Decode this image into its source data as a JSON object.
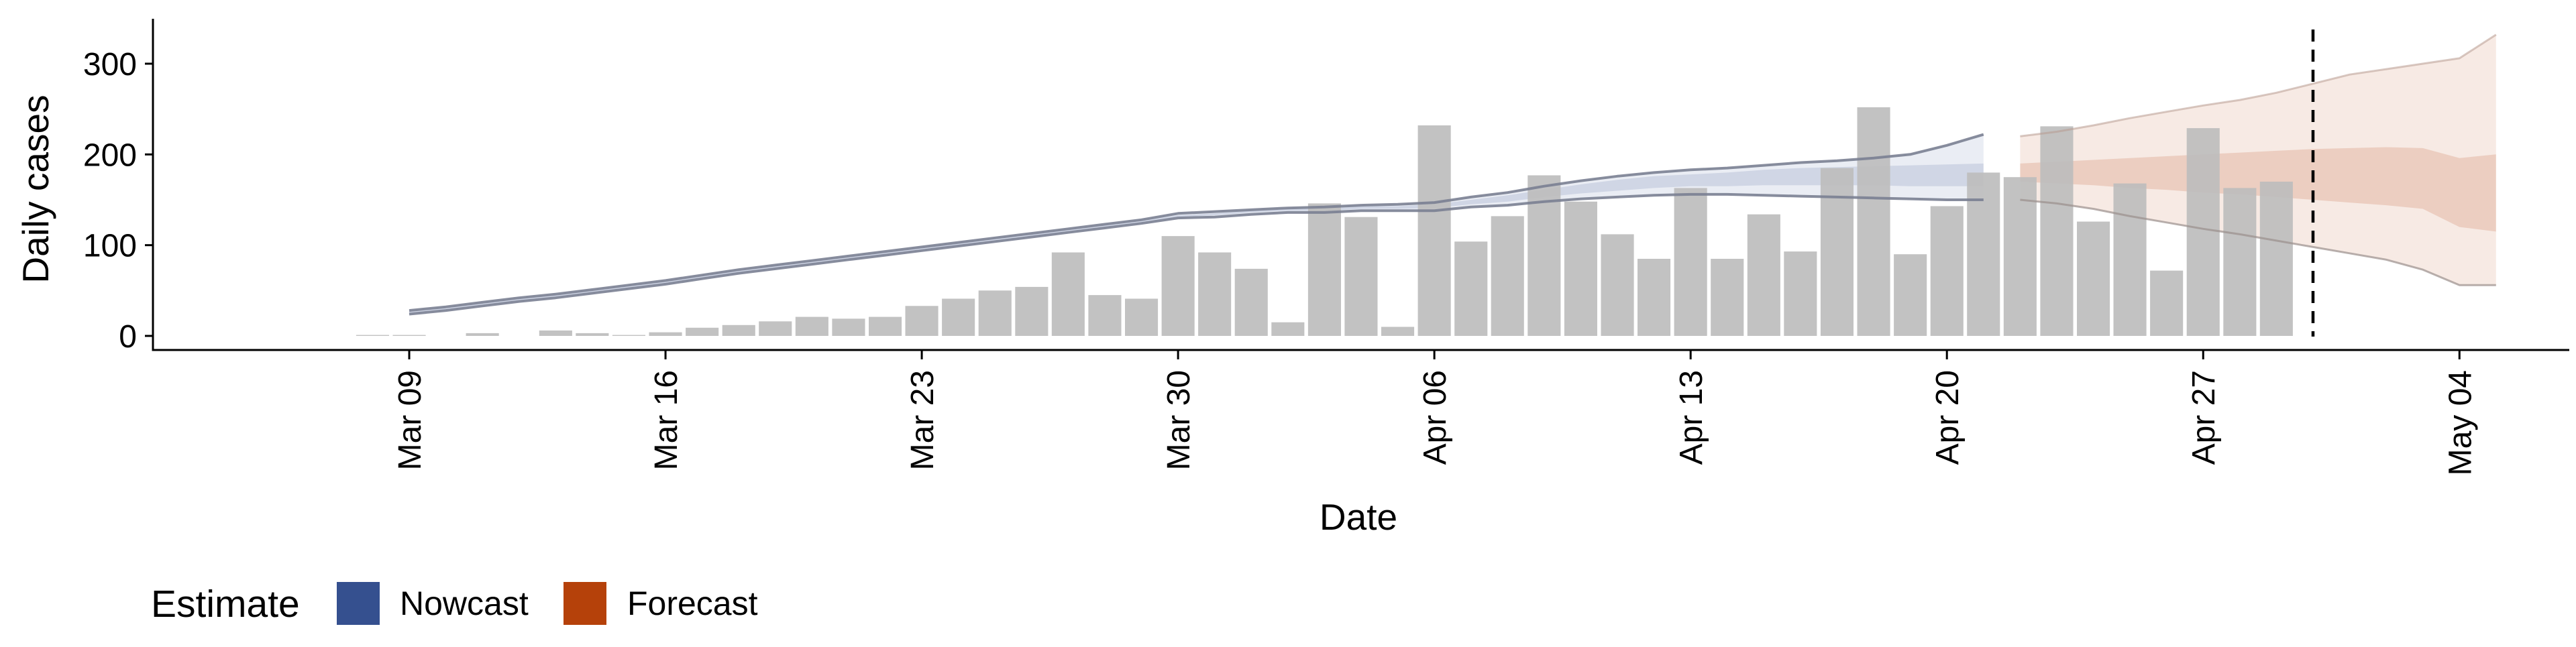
{
  "chart_data": {
    "type": "bar",
    "title": "",
    "xlabel": "Date",
    "ylabel": "Daily cases",
    "ylim": [
      0,
      350
    ],
    "yticks": [
      0,
      100,
      200,
      300
    ],
    "xlim": [
      "2020-03-02",
      "2020-05-07"
    ],
    "xticks": [
      "2020-03-09",
      "2020-03-16",
      "2020-03-23",
      "2020-03-30",
      "2020-04-06",
      "2020-04-13",
      "2020-04-20",
      "2020-04-27",
      "2020-05-04"
    ],
    "xtick_labels": [
      "Mar 09",
      "Mar 16",
      "Mar 23",
      "Mar 30",
      "Apr 06",
      "Apr 13",
      "Apr 20",
      "Apr 27",
      "May 04"
    ],
    "grid": false,
    "legend": {
      "title": "Estimate",
      "placement": "bottom-left",
      "entries": [
        {
          "name": "Nowcast",
          "color": "#35508f"
        },
        {
          "name": "Forecast",
          "color": "#b5410a"
        }
      ]
    },
    "vertical_dashed_line_date": "2020-04-30",
    "bars": {
      "color": "#bdbdbd",
      "dates": [
        "2020-03-08",
        "2020-03-09",
        "2020-03-10",
        "2020-03-11",
        "2020-03-12",
        "2020-03-13",
        "2020-03-14",
        "2020-03-15",
        "2020-03-16",
        "2020-03-17",
        "2020-03-18",
        "2020-03-19",
        "2020-03-20",
        "2020-03-21",
        "2020-03-22",
        "2020-03-23",
        "2020-03-24",
        "2020-03-25",
        "2020-03-26",
        "2020-03-27",
        "2020-03-28",
        "2020-03-29",
        "2020-03-30",
        "2020-03-31",
        "2020-04-01",
        "2020-04-02",
        "2020-04-03",
        "2020-04-04",
        "2020-04-05",
        "2020-04-06",
        "2020-04-07",
        "2020-04-08",
        "2020-04-09",
        "2020-04-10",
        "2020-04-11",
        "2020-04-12",
        "2020-04-13",
        "2020-04-14",
        "2020-04-15",
        "2020-04-16",
        "2020-04-17",
        "2020-04-18",
        "2020-04-19",
        "2020-04-20",
        "2020-04-21",
        "2020-04-22",
        "2020-04-23",
        "2020-04-24",
        "2020-04-25",
        "2020-04-26",
        "2020-04-27",
        "2020-04-28",
        "2020-04-29",
        "2020-04-30"
      ],
      "values": [
        1,
        1,
        0,
        3,
        0,
        6,
        3,
        1,
        4,
        9,
        12,
        16,
        21,
        19,
        21,
        33,
        41,
        50,
        54,
        92,
        45,
        41,
        110,
        92,
        74,
        15,
        146,
        131,
        10,
        232,
        104,
        132,
        177,
        148,
        112,
        85,
        163,
        85,
        134,
        93,
        185,
        252,
        90,
        143,
        180,
        175,
        231,
        126,
        168,
        72,
        229,
        163,
        170,
        0
      ]
    },
    "series": [
      {
        "name": "Nowcast",
        "color": "#35508f",
        "dates": [
          "2020-03-09",
          "2020-03-10",
          "2020-03-11",
          "2020-03-12",
          "2020-03-13",
          "2020-03-14",
          "2020-03-15",
          "2020-03-16",
          "2020-03-17",
          "2020-03-18",
          "2020-03-19",
          "2020-03-20",
          "2020-03-21",
          "2020-03-22",
          "2020-03-23",
          "2020-03-24",
          "2020-03-25",
          "2020-03-26",
          "2020-03-27",
          "2020-03-28",
          "2020-03-29",
          "2020-03-30",
          "2020-03-31",
          "2020-04-01",
          "2020-04-02",
          "2020-04-03",
          "2020-04-04",
          "2020-04-05",
          "2020-04-06",
          "2020-04-07",
          "2020-04-08",
          "2020-04-09",
          "2020-04-10",
          "2020-04-11",
          "2020-04-12",
          "2020-04-13",
          "2020-04-14",
          "2020-04-15",
          "2020-04-16",
          "2020-04-17",
          "2020-04-18",
          "2020-04-19",
          "2020-04-20",
          "2020-04-21"
        ],
        "lower90": [
          24,
          28,
          33,
          38,
          42,
          47,
          52,
          57,
          63,
          69,
          74,
          79,
          84,
          89,
          94,
          99,
          104,
          109,
          114,
          119,
          124,
          130,
          131,
          134,
          136,
          136,
          138,
          138,
          138,
          142,
          144,
          148,
          151,
          153,
          155,
          156,
          156,
          155,
          154,
          153,
          152,
          151,
          150,
          150
        ],
        "lower50": [
          25,
          29,
          34,
          39,
          43,
          48,
          53,
          58,
          64,
          70,
          75,
          80,
          85,
          90,
          95,
          100,
          105,
          110,
          115,
          120,
          125,
          131,
          133,
          136,
          138,
          138,
          140,
          140,
          141,
          145,
          148,
          153,
          157,
          160,
          163,
          165,
          165,
          166,
          166,
          166,
          166,
          165,
          165,
          165
        ],
        "median": [
          26,
          30,
          35,
          40,
          44,
          49,
          54,
          59,
          65,
          71,
          76,
          81,
          86,
          91,
          96,
          101,
          106,
          111,
          116,
          121,
          126,
          132,
          134,
          137,
          139,
          139,
          141,
          141,
          142,
          147,
          151,
          157,
          162,
          166,
          169,
          171,
          172,
          174,
          175,
          176,
          176,
          176,
          176,
          176
        ],
        "upper50": [
          27,
          31,
          36,
          41,
          45,
          50,
          55,
          60,
          66,
          72,
          77,
          82,
          87,
          92,
          97,
          102,
          107,
          112,
          117,
          122,
          127,
          133,
          135,
          138,
          140,
          140,
          143,
          143,
          145,
          150,
          155,
          161,
          167,
          172,
          176,
          178,
          180,
          183,
          185,
          186,
          187,
          188,
          189,
          190
        ],
        "upper90": [
          28,
          32,
          37,
          42,
          46,
          51,
          56,
          61,
          67,
          73,
          78,
          83,
          88,
          93,
          98,
          103,
          108,
          113,
          118,
          123,
          128,
          135,
          137,
          139,
          141,
          142,
          144,
          145,
          147,
          153,
          158,
          165,
          171,
          176,
          180,
          183,
          185,
          188,
          191,
          193,
          196,
          200,
          210,
          222
        ]
      },
      {
        "name": "Forecast",
        "color": "#b5410a",
        "dates": [
          "2020-04-22",
          "2020-04-23",
          "2020-04-24",
          "2020-04-25",
          "2020-04-26",
          "2020-04-27",
          "2020-04-28",
          "2020-04-29",
          "2020-04-30",
          "2020-05-01",
          "2020-05-02",
          "2020-05-03",
          "2020-05-04",
          "2020-05-05"
        ],
        "lower90": [
          150,
          146,
          140,
          132,
          125,
          118,
          112,
          105,
          98,
          91,
          84,
          73,
          56,
          56
        ],
        "lower50": [
          170,
          168,
          166,
          163,
          161,
          158,
          156,
          153,
          150,
          147,
          144,
          140,
          120,
          115
        ],
        "upper50": [
          190,
          192,
          194,
          196,
          198,
          200,
          202,
          204,
          206,
          207,
          208,
          207,
          196,
          200
        ],
        "upper90": [
          220,
          225,
          232,
          240,
          247,
          254,
          260,
          268,
          278,
          288,
          294,
          300,
          306,
          332
        ]
      }
    ]
  }
}
